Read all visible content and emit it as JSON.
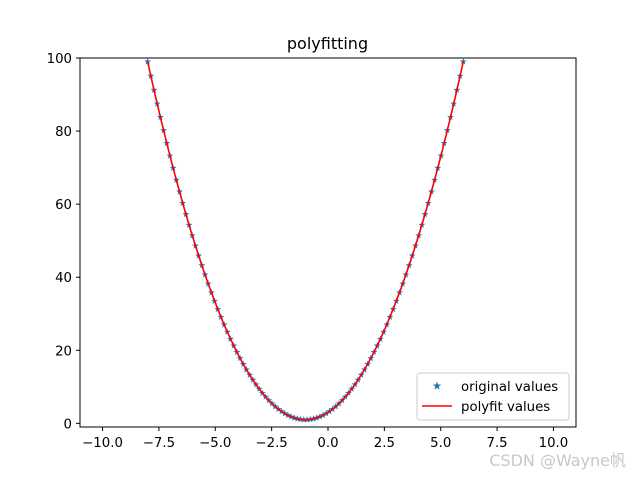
{
  "chart_data": {
    "type": "line",
    "title": "polyfitting",
    "xlabel": "",
    "ylabel": "",
    "xlim": [
      -11,
      11
    ],
    "ylim": [
      -1,
      100
    ],
    "xticks": [
      -10.0,
      -7.5,
      -5.0,
      -2.5,
      0.0,
      2.5,
      5.0,
      7.5,
      10.0
    ],
    "xtick_labels": [
      "−10.0",
      "−7.5",
      "−5.0",
      "−2.5",
      "0.0",
      "2.5",
      "5.0",
      "7.5",
      "10.0"
    ],
    "yticks": [
      0,
      20,
      40,
      60,
      80,
      100
    ],
    "ytick_labels": [
      "0",
      "20",
      "40",
      "60",
      "80",
      "100"
    ],
    "grid": false,
    "legend_position": "lower-right",
    "series": [
      {
        "name": "original values",
        "style": "markers",
        "marker": "star",
        "color": "#1f77b4",
        "x_range": [
          -8,
          6
        ],
        "num_points": 100,
        "formula": "y = 2x^2 + 4x + 3"
      },
      {
        "name": "polyfit values",
        "style": "line",
        "color": "#ff0000",
        "x_range": [
          -8,
          6
        ],
        "formula": "y = 2x^2 + 4x + 3"
      }
    ]
  },
  "watermark": "CSDN @Wayne帆"
}
